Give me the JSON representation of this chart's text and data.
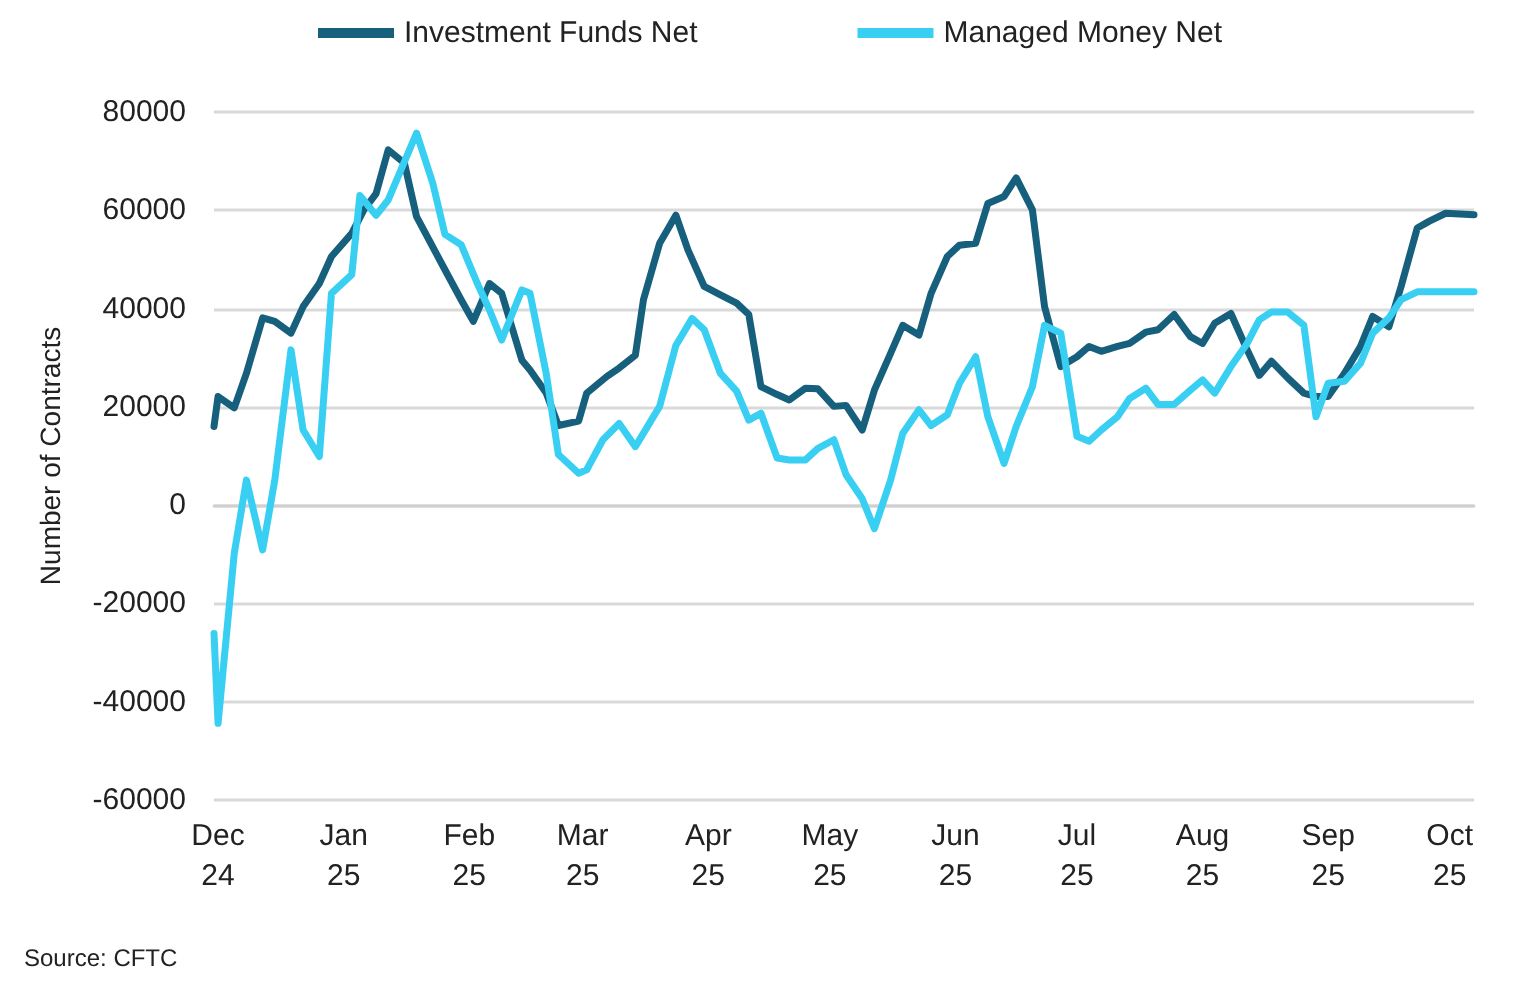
{
  "chart_data": {
    "type": "line",
    "ylabel": "Number of Contracts",
    "annotations": [
      "Source: CFTC"
    ],
    "xlim": [
      "2024-11-30",
      "2025-10-07"
    ],
    "xticks": [
      {
        "value": "2024-12-01",
        "label": "Dec\n24"
      },
      {
        "value": "2025-01-01",
        "label": "Jan\n25"
      },
      {
        "value": "2025-02-01",
        "label": "Feb\n25"
      },
      {
        "value": "2025-03-01",
        "label": "Mar\n25"
      },
      {
        "value": "2025-04-01",
        "label": "Apr\n25"
      },
      {
        "value": "2025-05-01",
        "label": "May\n25"
      },
      {
        "value": "2025-06-01",
        "label": "Jun\n25"
      },
      {
        "value": "2025-07-01",
        "label": "Jul\n25"
      },
      {
        "value": "2025-08-01",
        "label": "Aug\n25"
      },
      {
        "value": "2025-09-01",
        "label": "Sep\n25"
      },
      {
        "value": "2025-10-01",
        "label": "Oct\n25"
      }
    ],
    "ylim": [
      -60000,
      80000
    ],
    "yticks": [
      -60000,
      -40000,
      -20000,
      0,
      20000,
      40000,
      60000,
      80000
    ],
    "grid": "y",
    "legend": "top",
    "marker": "none",
    "line_style": "solid",
    "series": [
      {
        "name": "Investment Funds Net",
        "color": "#17607d",
        "x": [
          "2024-11-30",
          "2024-12-01",
          "2024-12-05",
          "2024-12-08",
          "2024-12-12",
          "2024-12-15",
          "2024-12-19",
          "2024-12-22",
          "2024-12-26",
          "2024-12-29",
          "2025-01-03",
          "2025-01-06",
          "2025-01-09",
          "2025-01-12",
          "2025-01-16",
          "2025-01-19",
          "2025-01-26",
          "2025-01-30",
          "2025-02-02",
          "2025-02-06",
          "2025-02-09",
          "2025-02-14",
          "2025-02-16",
          "2025-02-20",
          "2025-02-23",
          "2025-02-28",
          "2025-03-02",
          "2025-03-07",
          "2025-03-10",
          "2025-03-14",
          "2025-03-16",
          "2025-03-20",
          "2025-03-24",
          "2025-03-27",
          "2025-03-31",
          "2025-04-04",
          "2025-04-08",
          "2025-04-11",
          "2025-04-14",
          "2025-04-18",
          "2025-04-21",
          "2025-04-25",
          "2025-04-28",
          "2025-05-02",
          "2025-05-05",
          "2025-05-09",
          "2025-05-12",
          "2025-05-16",
          "2025-05-19",
          "2025-05-23",
          "2025-05-26",
          "2025-05-30",
          "2025-06-02",
          "2025-06-06",
          "2025-06-09",
          "2025-06-13",
          "2025-06-16",
          "2025-06-20",
          "2025-06-23",
          "2025-06-27",
          "2025-07-01",
          "2025-07-04",
          "2025-07-07",
          "2025-07-11",
          "2025-07-14",
          "2025-07-18",
          "2025-07-21",
          "2025-07-25",
          "2025-07-29",
          "2025-08-01",
          "2025-08-04",
          "2025-08-08",
          "2025-08-12",
          "2025-08-15",
          "2025-08-18",
          "2025-08-22",
          "2025-08-26",
          "2025-08-29",
          "2025-09-01",
          "2025-09-05",
          "2025-09-09",
          "2025-09-12",
          "2025-09-16",
          "2025-09-19",
          "2025-09-23",
          "2025-09-26",
          "2025-09-30",
          "2025-10-07"
        ],
        "values": [
          16000,
          22100,
          19800,
          26800,
          38100,
          37400,
          35000,
          40400,
          45100,
          50600,
          55300,
          60100,
          63400,
          72300,
          69600,
          58700,
          47900,
          41800,
          37400,
          45100,
          43100,
          29500,
          27500,
          22800,
          16200,
          17100,
          22800,
          26200,
          27900,
          30500,
          41800,
          53300,
          59000,
          51900,
          44500,
          42800,
          41100,
          38800,
          24100,
          22500,
          21400,
          23800,
          23700,
          20100,
          20300,
          15300,
          23400,
          30900,
          36600,
          34600,
          43100,
          50600,
          52900,
          53300,
          61400,
          62800,
          66600,
          60100,
          40400,
          28200,
          30200,
          32300,
          31300,
          32300,
          32900,
          35200,
          35700,
          38800,
          34300,
          32900,
          37000,
          39000,
          31600,
          26400,
          29300,
          25900,
          22800,
          22100,
          22100,
          26800,
          32300,
          38400,
          36300,
          44500,
          56400,
          57800,
          59400,
          59100
        ]
      },
      {
        "name": "Managed Money Net",
        "color": "#38cff3",
        "x": [
          "2024-11-30",
          "2024-12-01",
          "2024-12-05",
          "2024-12-08",
          "2024-12-12",
          "2024-12-15",
          "2024-12-19",
          "2024-12-22",
          "2024-12-26",
          "2024-12-29",
          "2025-01-03",
          "2025-01-05",
          "2025-01-09",
          "2025-01-12",
          "2025-01-19",
          "2025-01-23",
          "2025-01-26",
          "2025-01-30",
          "2025-02-03",
          "2025-02-06",
          "2025-02-09",
          "2025-02-14",
          "2025-02-16",
          "2025-02-20",
          "2025-02-23",
          "2025-02-28",
          "2025-03-02",
          "2025-03-06",
          "2025-03-10",
          "2025-03-14",
          "2025-03-20",
          "2025-03-24",
          "2025-03-28",
          "2025-03-31",
          "2025-04-04",
          "2025-04-08",
          "2025-04-11",
          "2025-04-14",
          "2025-04-18",
          "2025-04-21",
          "2025-04-25",
          "2025-04-28",
          "2025-05-02",
          "2025-05-05",
          "2025-05-09",
          "2025-05-12",
          "2025-05-16",
          "2025-05-19",
          "2025-05-23",
          "2025-05-26",
          "2025-05-30",
          "2025-06-02",
          "2025-06-06",
          "2025-06-09",
          "2025-06-13",
          "2025-06-16",
          "2025-06-20",
          "2025-06-23",
          "2025-06-27",
          "2025-07-01",
          "2025-07-04",
          "2025-07-07",
          "2025-07-11",
          "2025-07-14",
          "2025-07-18",
          "2025-07-21",
          "2025-07-25",
          "2025-07-29",
          "2025-08-01",
          "2025-08-04",
          "2025-08-08",
          "2025-08-12",
          "2025-08-15",
          "2025-08-18",
          "2025-08-22",
          "2025-08-26",
          "2025-08-29",
          "2025-09-01",
          "2025-09-05",
          "2025-09-09",
          "2025-09-12",
          "2025-09-16",
          "2025-09-19",
          "2025-09-23",
          "2025-10-07"
        ],
        "values": [
          -26100,
          -44400,
          -9800,
          5100,
          -9100,
          5100,
          31600,
          15300,
          9900,
          43100,
          46900,
          63000,
          59000,
          62100,
          75700,
          65500,
          55100,
          53000,
          45100,
          39700,
          33600,
          43800,
          43100,
          26800,
          10300,
          6500,
          7200,
          13300,
          16600,
          11900,
          20100,
          32500,
          38000,
          35700,
          26800,
          23200,
          17300,
          18700,
          9600,
          9200,
          9200,
          11500,
          13300,
          6200,
          1300,
          -4800,
          5100,
          14600,
          19400,
          16200,
          18400,
          24800,
          30200,
          18000,
          8500,
          16000,
          24100,
          36600,
          35000,
          14000,
          13000,
          15300,
          18000,
          21700,
          23800,
          20500,
          20500,
          23400,
          25500,
          22800,
          28200,
          32900,
          37700,
          39300,
          39300,
          36600,
          18000,
          24800,
          25200,
          28900,
          35000,
          38100,
          41800,
          43400,
          43400
        ]
      }
    ]
  }
}
